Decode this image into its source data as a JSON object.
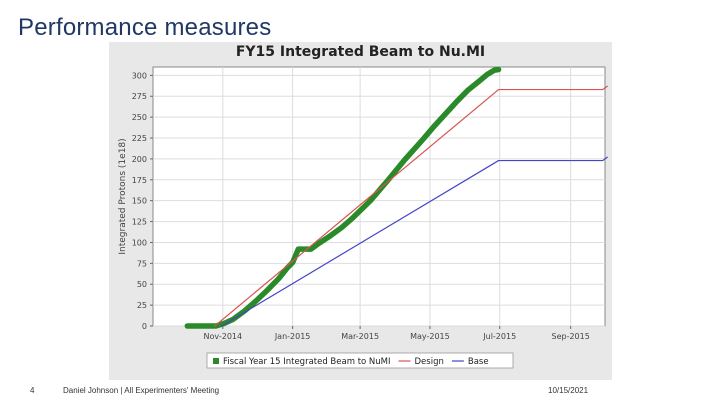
{
  "slide": {
    "title": "Performance measures",
    "page_number": "4",
    "footer_text": "Daniel Johnson | All Experimenters' Meeting",
    "date": "10/15/2021"
  },
  "chart_data": {
    "type": "line",
    "title": "FY15 Integrated Beam to Nu.MI",
    "xlabel": "",
    "ylabel": "Integrated Protons (1e18)",
    "ylim": [
      0,
      310
    ],
    "yticks": [
      0,
      25,
      50,
      75,
      100,
      125,
      150,
      175,
      200,
      225,
      250,
      275,
      300
    ],
    "xlim": [
      -30,
      365
    ],
    "xticks": [
      {
        "label": "Nov-2014",
        "x": 31
      },
      {
        "label": "Jan-2015",
        "x": 92
      },
      {
        "label": "Mar-2015",
        "x": 151
      },
      {
        "label": "May-2015",
        "x": 212
      },
      {
        "label": "Jul-2015",
        "x": 273
      },
      {
        "label": "Sep-2015",
        "x": 335
      }
    ],
    "legend": "bottom",
    "series": [
      {
        "name": "Fiscal Year 15 Integrated Beam to NuMI",
        "color": "#2a8a2a",
        "marker": "square",
        "x": [
          0,
          10,
          18,
          25,
          32,
          40,
          50,
          60,
          70,
          80,
          87,
          92,
          97,
          102,
          108,
          115,
          125,
          135,
          145,
          160,
          175,
          190,
          205,
          215,
          225,
          235,
          245,
          255,
          262,
          268,
          272
        ],
        "y": [
          0,
          0,
          0,
          0,
          3,
          8,
          18,
          30,
          43,
          57,
          69,
          76,
          92,
          92,
          92,
          99,
          108,
          118,
          130,
          150,
          174,
          199,
          222,
          238,
          253,
          268,
          282,
          293,
          301,
          306,
          307
        ]
      },
      {
        "name": "Design",
        "color": "#d9534f",
        "marker": "none",
        "x": [
          24,
          272,
          363,
          367
        ],
        "y": [
          0,
          283,
          283,
          287
        ]
      },
      {
        "name": "Base",
        "color": "#4444cc",
        "marker": "none",
        "x": [
          30,
          272,
          363,
          367
        ],
        "y": [
          0,
          198,
          198,
          202
        ]
      }
    ]
  }
}
